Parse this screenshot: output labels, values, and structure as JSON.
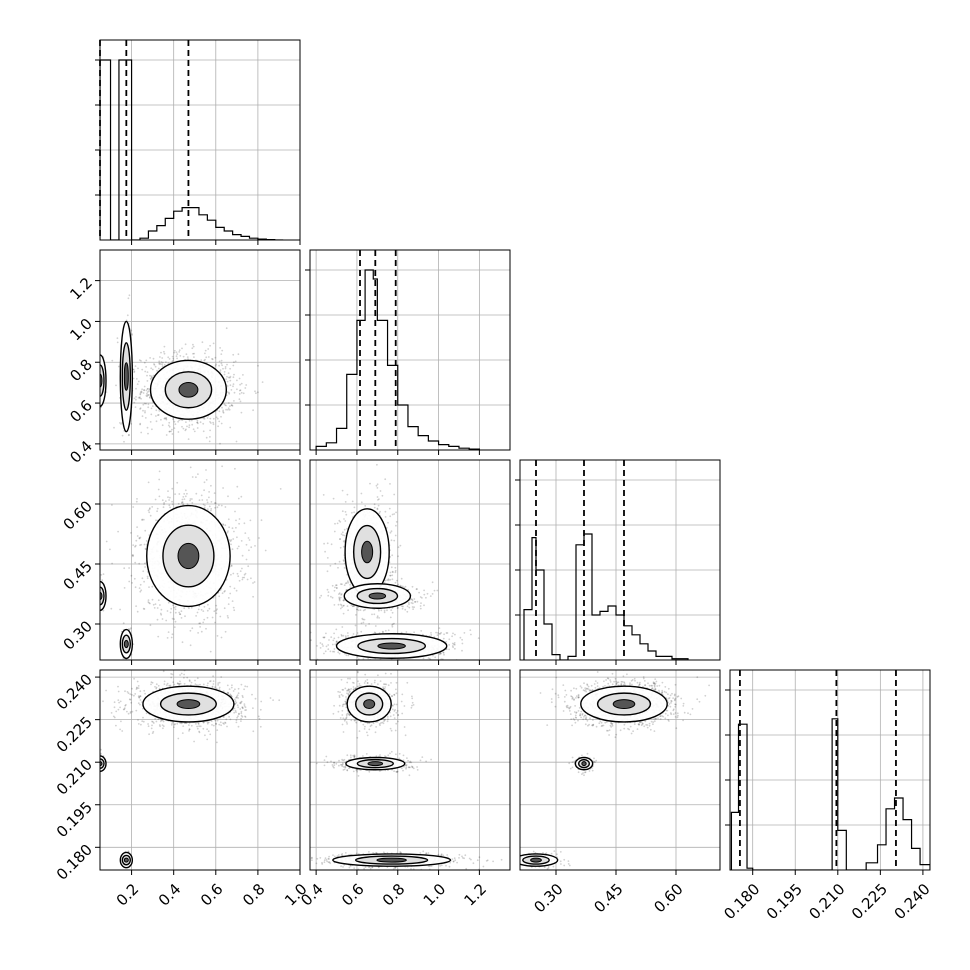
{
  "chart_data": {
    "type": "corner",
    "grid": true,
    "colors": {
      "ink": "#000000",
      "grid": "#b0b0b0",
      "points": "#000000"
    },
    "parameters": [
      {
        "range": [
          0.05,
          1.0
        ],
        "ticks": [
          0.2,
          0.4,
          0.6,
          0.8,
          1.0
        ],
        "tick_labels": [
          "0.2",
          "0.4",
          "0.6",
          "0.8",
          "1.0"
        ],
        "quantiles": [
          0.05,
          0.175,
          0.47
        ]
      },
      {
        "range": [
          0.37,
          1.35
        ],
        "ticks": [
          0.4,
          0.6,
          0.8,
          1.0,
          1.2
        ],
        "tick_labels": [
          "0.4",
          "0.6",
          "0.8",
          "1.0",
          "1.2"
        ],
        "quantiles": [
          0.615,
          0.69,
          0.79
        ]
      },
      {
        "range": [
          0.21,
          0.71
        ],
        "ticks": [
          0.3,
          0.45,
          0.6
        ],
        "tick_labels": [
          "0.30",
          "0.45",
          "0.60"
        ],
        "quantiles": [
          0.25,
          0.37,
          0.47
        ]
      },
      {
        "range": [
          0.172,
          0.2425
        ],
        "ticks": [
          0.18,
          0.195,
          0.21,
          0.225,
          0.24
        ],
        "tick_labels": [
          "0.180",
          "0.195",
          "0.210",
          "0.225",
          "0.240"
        ],
        "quantiles": [
          0.1755,
          0.2095,
          0.2305
        ]
      }
    ],
    "histograms": [
      {
        "param": 0,
        "bins": [
          [
            0.05,
            0.1,
            1.0
          ],
          [
            0.1,
            0.14,
            0.0
          ],
          [
            0.14,
            0.2,
            1.0
          ],
          [
            0.2,
            0.24,
            0.0
          ],
          [
            0.24,
            0.28,
            0.01
          ],
          [
            0.28,
            0.32,
            0.05
          ],
          [
            0.32,
            0.36,
            0.08
          ],
          [
            0.36,
            0.4,
            0.12
          ],
          [
            0.4,
            0.44,
            0.16
          ],
          [
            0.44,
            0.48,
            0.18
          ],
          [
            0.48,
            0.52,
            0.18
          ],
          [
            0.52,
            0.56,
            0.14
          ],
          [
            0.56,
            0.6,
            0.11
          ],
          [
            0.6,
            0.64,
            0.07
          ],
          [
            0.64,
            0.68,
            0.05
          ],
          [
            0.68,
            0.72,
            0.03
          ],
          [
            0.72,
            0.76,
            0.02
          ],
          [
            0.76,
            0.8,
            0.01
          ],
          [
            0.8,
            0.84,
            0.005
          ],
          [
            0.84,
            0.88,
            0.002
          ],
          [
            0.88,
            0.92,
            0.0
          ]
        ]
      },
      {
        "param": 1,
        "bins": [
          [
            0.4,
            0.45,
            0.02
          ],
          [
            0.45,
            0.5,
            0.04
          ],
          [
            0.5,
            0.55,
            0.12
          ],
          [
            0.55,
            0.6,
            0.42
          ],
          [
            0.6,
            0.64,
            0.72
          ],
          [
            0.64,
            0.68,
            1.0
          ],
          [
            0.68,
            0.7,
            0.95
          ],
          [
            0.7,
            0.75,
            0.72
          ],
          [
            0.75,
            0.8,
            0.47
          ],
          [
            0.8,
            0.85,
            0.25
          ],
          [
            0.85,
            0.9,
            0.13
          ],
          [
            0.9,
            0.95,
            0.08
          ],
          [
            0.95,
            1.0,
            0.05
          ],
          [
            1.0,
            1.05,
            0.03
          ],
          [
            1.05,
            1.1,
            0.02
          ],
          [
            1.1,
            1.15,
            0.01
          ],
          [
            1.15,
            1.2,
            0.005
          ]
        ]
      },
      {
        "param": 2,
        "bins": [
          [
            0.22,
            0.24,
            0.28
          ],
          [
            0.24,
            0.25,
            0.68
          ],
          [
            0.25,
            0.27,
            0.5
          ],
          [
            0.27,
            0.29,
            0.2
          ],
          [
            0.29,
            0.31,
            0.03
          ],
          [
            0.31,
            0.33,
            0.0
          ],
          [
            0.33,
            0.35,
            0.02
          ],
          [
            0.35,
            0.37,
            0.64
          ],
          [
            0.37,
            0.39,
            0.7
          ],
          [
            0.39,
            0.41,
            0.25
          ],
          [
            0.41,
            0.43,
            0.27
          ],
          [
            0.43,
            0.45,
            0.3
          ],
          [
            0.45,
            0.47,
            0.25
          ],
          [
            0.47,
            0.49,
            0.19
          ],
          [
            0.49,
            0.51,
            0.14
          ],
          [
            0.51,
            0.53,
            0.09
          ],
          [
            0.53,
            0.55,
            0.05
          ],
          [
            0.55,
            0.59,
            0.02
          ],
          [
            0.59,
            0.63,
            0.007
          ]
        ]
      },
      {
        "param": 3,
        "bins": [
          [
            0.1725,
            0.175,
            0.32
          ],
          [
            0.175,
            0.178,
            0.81
          ],
          [
            0.178,
            0.18,
            0.01
          ],
          [
            0.18,
            0.208,
            0.0
          ],
          [
            0.208,
            0.21,
            0.84
          ],
          [
            0.21,
            0.213,
            0.22
          ],
          [
            0.213,
            0.22,
            0.0
          ],
          [
            0.22,
            0.224,
            0.04
          ],
          [
            0.224,
            0.227,
            0.14
          ],
          [
            0.227,
            0.23,
            0.34
          ],
          [
            0.23,
            0.233,
            0.4
          ],
          [
            0.233,
            0.236,
            0.28
          ],
          [
            0.236,
            0.239,
            0.12
          ],
          [
            0.239,
            0.2425,
            0.03
          ]
        ]
      }
    ],
    "clusters": [
      {
        "xp": 0,
        "yp": 1,
        "blobs": [
          {
            "cx": 0.05,
            "cy": 0.71,
            "sx": 0.01,
            "sy": 0.07,
            "n": 80
          },
          {
            "cx": 0.175,
            "cy": 0.73,
            "sx": 0.015,
            "sy": 0.15,
            "n": 160
          },
          {
            "cx": 0.47,
            "cy": 0.665,
            "sx": 0.1,
            "sy": 0.08,
            "n": 1300
          }
        ]
      },
      {
        "xp": 0,
        "yp": 2,
        "blobs": [
          {
            "cx": 0.05,
            "cy": 0.37,
            "sx": 0.01,
            "sy": 0.02,
            "n": 60
          },
          {
            "cx": 0.175,
            "cy": 0.25,
            "sx": 0.012,
            "sy": 0.02,
            "n": 80
          },
          {
            "cx": 0.47,
            "cy": 0.47,
            "sx": 0.11,
            "sy": 0.07,
            "n": 1300
          }
        ]
      },
      {
        "xp": 0,
        "yp": 3,
        "blobs": [
          {
            "cx": 0.05,
            "cy": 0.2095,
            "sx": 0.01,
            "sy": 0.0015,
            "n": 50
          },
          {
            "cx": 0.175,
            "cy": 0.1755,
            "sx": 0.01,
            "sy": 0.0015,
            "n": 50
          },
          {
            "cx": 0.47,
            "cy": 0.2305,
            "sx": 0.12,
            "sy": 0.0035,
            "n": 1200
          }
        ]
      },
      {
        "xp": 1,
        "yp": 2,
        "blobs": [
          {
            "cx": 0.65,
            "cy": 0.48,
            "sx": 0.06,
            "sy": 0.06,
            "n": 700
          },
          {
            "cx": 0.7,
            "cy": 0.37,
            "sx": 0.09,
            "sy": 0.017,
            "n": 500
          },
          {
            "cx": 0.77,
            "cy": 0.245,
            "sx": 0.15,
            "sy": 0.017,
            "n": 700
          }
        ]
      },
      {
        "xp": 1,
        "yp": 3,
        "blobs": [
          {
            "cx": 0.66,
            "cy": 0.2305,
            "sx": 0.06,
            "sy": 0.0035,
            "n": 700
          },
          {
            "cx": 0.69,
            "cy": 0.2095,
            "sx": 0.08,
            "sy": 0.0012,
            "n": 450
          },
          {
            "cx": 0.77,
            "cy": 0.1755,
            "sx": 0.16,
            "sy": 0.0012,
            "n": 600
          }
        ]
      },
      {
        "xp": 2,
        "yp": 3,
        "blobs": [
          {
            "cx": 0.47,
            "cy": 0.2305,
            "sx": 0.06,
            "sy": 0.0035,
            "n": 1200
          },
          {
            "cx": 0.37,
            "cy": 0.2095,
            "sx": 0.012,
            "sy": 0.0012,
            "n": 150
          },
          {
            "cx": 0.25,
            "cy": 0.1755,
            "sx": 0.03,
            "sy": 0.0012,
            "n": 200
          }
        ]
      }
    ]
  }
}
